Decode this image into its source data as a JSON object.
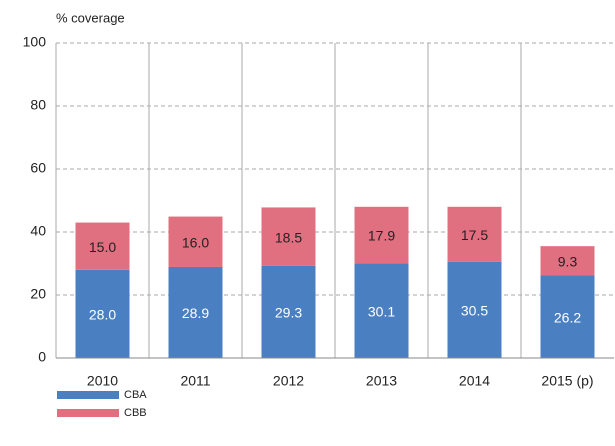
{
  "chart_data": {
    "type": "stacked-bar",
    "y_label": "% coverage",
    "categories": [
      "2010",
      "2011",
      "2012",
      "2013",
      "2014",
      "2015 (p)"
    ],
    "series": [
      {
        "name": "CBA",
        "color": "#4a7fc1",
        "values": [
          28.0,
          28.9,
          29.3,
          30.1,
          30.5,
          26.2
        ],
        "value_labels": [
          "28.0",
          "28.9",
          "29.3",
          "30.1",
          "30.5",
          "26.2"
        ]
      },
      {
        "name": "CBB",
        "color": "#e07080",
        "values": [
          15.0,
          16.0,
          18.5,
          17.9,
          17.5,
          9.3
        ],
        "value_labels": [
          "15.0",
          "16.0",
          "18.5",
          "17.9",
          "17.5",
          "9.3"
        ]
      }
    ],
    "ylim": [
      0,
      100
    ],
    "yticks": [
      0,
      20,
      40,
      60,
      80,
      100
    ],
    "grid": true
  }
}
